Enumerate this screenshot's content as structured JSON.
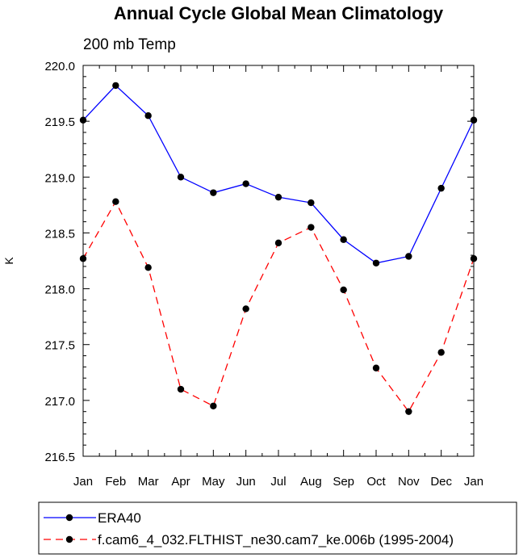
{
  "chart_data": {
    "type": "line",
    "title": "Annual Cycle Global Mean Climatology",
    "subtitle": "200 mb Temp",
    "ylabel": "K",
    "xlabel": "",
    "categories": [
      "Jan",
      "Feb",
      "Mar",
      "Apr",
      "May",
      "Jun",
      "Jul",
      "Aug",
      "Sep",
      "Oct",
      "Nov",
      "Dec",
      "Jan"
    ],
    "ylim": [
      216.5,
      220.0
    ],
    "yticks": [
      "216.5",
      "217.0",
      "217.5",
      "218.0",
      "218.5",
      "219.0",
      "219.5",
      "220.0"
    ],
    "grid": false,
    "legend_position": "bottom",
    "series": [
      {
        "name": "ERA40",
        "color": "#0000ff",
        "line_style": "solid",
        "marker": "filled-circle",
        "values": [
          219.51,
          219.82,
          219.55,
          219.0,
          218.86,
          218.94,
          218.82,
          218.77,
          218.44,
          218.23,
          218.29,
          218.9,
          219.51
        ]
      },
      {
        "name": "f.cam6_4_032.FLTHIST_ne30.cam7_ke.006b (1995-2004)",
        "color": "#ff0000",
        "line_style": "dashed",
        "marker": "filled-circle",
        "values": [
          218.27,
          218.78,
          218.19,
          217.1,
          216.95,
          217.82,
          218.41,
          218.55,
          217.99,
          217.29,
          216.9,
          217.43,
          218.27
        ]
      }
    ]
  }
}
